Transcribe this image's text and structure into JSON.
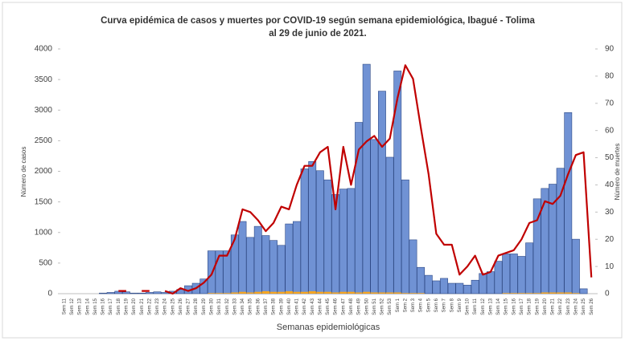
{
  "chart_data": {
    "type": "combo",
    "title": [
      "Curva epidémica de casos y muertes por COVID-19 según semana epidemiológica, Ibagué - Tolima",
      "al 29 de junio de 2021."
    ],
    "x_label": "Semanas epidemiológicas",
    "y_label": "Número de casos",
    "y2_label": "Número de muertes",
    "categories": [
      "Sem 11",
      "Sem 12",
      "Sem 13",
      "Sem 14",
      "Sem 15",
      "Sem 16",
      "Sem 17",
      "Sem 18",
      "Sem 19",
      "Sem 20",
      "Sem 21",
      "Sem 22",
      "Sem 23",
      "Sem 24",
      "Sem 25",
      "Sem 26",
      "Sem 27",
      "Sem 28",
      "Sem 29",
      "Sem 30",
      "Sem 31",
      "Sem 32",
      "Sem 33",
      "Sem 34",
      "Sem 35",
      "Sem 36",
      "Sem 37",
      "Sem 38",
      "Sem 39",
      "Sem 40",
      "Sem 41",
      "Sem 42",
      "Sem 43",
      "Sem 44",
      "Sem 45",
      "Sem 46",
      "Sem 47",
      "Sem 48",
      "Sem 49",
      "Sem 50",
      "Sem 51",
      "Sem 52",
      "Sem 53",
      "Sem 1",
      "Sem 2",
      "Sem 3",
      "Sem 4",
      "Sem 5",
      "Sem 6",
      "Sem 7",
      "Sem 8",
      "Sem 9",
      "Sem 10",
      "Sem 11",
      "Sem 12",
      "Sem 13",
      "Sem 14",
      "Sem 15",
      "Sem 16",
      "Sem 17",
      "Sem 18",
      "Sem 19",
      "Sem 20",
      "Sem 21",
      "Sem 22",
      "Sem 23",
      "Sem 24",
      "Sem 25",
      "Sem 26"
    ],
    "series": [
      {
        "type": "bar",
        "color": "#7092d4",
        "values": [
          0,
          0,
          0,
          0,
          0,
          10,
          20,
          40,
          30,
          10,
          10,
          20,
          30,
          20,
          40,
          70,
          130,
          170,
          240,
          700,
          700,
          700,
          960,
          1180,
          920,
          1100,
          950,
          870,
          790,
          1140,
          1180,
          2040,
          2160,
          2010,
          1860,
          1620,
          1710,
          1720,
          2800,
          3750,
          2520,
          3310,
          2230,
          3640,
          1860,
          880,
          430,
          300,
          210,
          250,
          170,
          170,
          140,
          220,
          330,
          360,
          530,
          650,
          650,
          610,
          830,
          1550,
          1720,
          1790,
          2050,
          2960,
          890,
          80,
          0
        ]
      },
      {
        "type": "bar",
        "color": "#f5a623",
        "values": [
          0,
          0,
          0,
          0,
          0,
          0,
          0,
          0,
          0,
          0,
          0,
          0,
          0,
          0,
          0,
          0,
          0,
          0,
          0,
          10,
          10,
          10,
          20,
          30,
          20,
          30,
          40,
          30,
          30,
          40,
          30,
          30,
          40,
          30,
          30,
          20,
          30,
          30,
          20,
          30,
          20,
          20,
          20,
          20,
          10,
          10,
          10,
          0,
          0,
          0,
          0,
          0,
          0,
          0,
          0,
          0,
          0,
          10,
          10,
          10,
          10,
          10,
          20,
          20,
          20,
          20,
          10,
          0,
          0
        ]
      },
      {
        "type": "line",
        "color": "#c00000",
        "axis": "y2",
        "values": [
          null,
          null,
          null,
          null,
          null,
          null,
          null,
          1,
          1,
          null,
          1,
          1,
          null,
          1,
          0,
          2,
          1,
          2,
          4,
          7,
          14,
          14,
          20,
          31,
          30,
          27,
          23,
          26,
          32,
          31,
          40,
          47,
          47,
          52,
          54,
          31,
          54,
          40,
          53,
          56,
          58,
          54,
          57,
          72,
          84,
          79,
          61,
          44,
          22,
          18,
          18,
          7,
          10,
          14,
          7,
          8,
          14,
          15,
          16,
          20,
          26,
          27,
          34,
          33,
          36,
          44,
          51,
          52,
          6
        ]
      }
    ],
    "ylim": [
      0,
      4000
    ],
    "yticks": [
      0,
      500,
      1000,
      1500,
      2000,
      2500,
      3000,
      3500,
      4000
    ],
    "y2lim": [
      0,
      90
    ],
    "y2ticks": [
      0,
      10,
      20,
      30,
      40,
      50,
      60,
      70,
      80,
      90
    ]
  }
}
